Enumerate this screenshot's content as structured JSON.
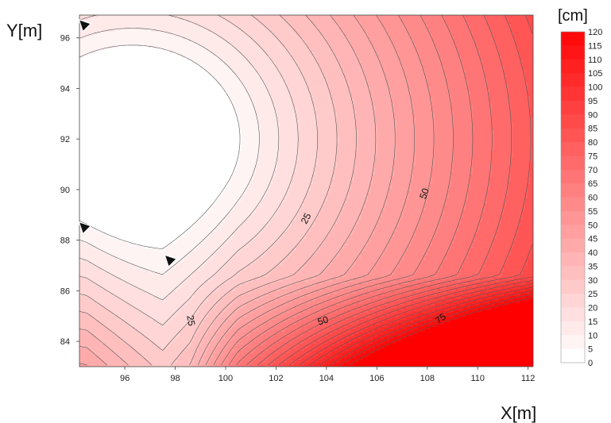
{
  "chart_data": {
    "type": "contour",
    "title": "",
    "xlabel": "X[m]",
    "ylabel": "Y[m]",
    "colorbar_unit": "[cm]",
    "xlim": [
      94.2,
      112.2
    ],
    "ylim": [
      83.0,
      96.9
    ],
    "x_ticks": [
      "96",
      "98",
      "100",
      "102",
      "104",
      "106",
      "108",
      "110",
      "112"
    ],
    "y_ticks": [
      "84",
      "86",
      "88",
      "90",
      "92",
      "94",
      "96"
    ],
    "levels": [
      0,
      5,
      10,
      15,
      20,
      25,
      30,
      35,
      40,
      45,
      50,
      55,
      60,
      65,
      70,
      75,
      80,
      85,
      90,
      95,
      100,
      105,
      110,
      115,
      120
    ],
    "colorbar_labels": [
      "120",
      "115",
      "110",
      "105",
      "100",
      "95",
      "90",
      "85",
      "80",
      "75",
      "70",
      "65",
      "60",
      "55",
      "50",
      "45",
      "40",
      "35",
      "30",
      "25",
      "20",
      "15",
      "10",
      "5",
      "0"
    ],
    "colors": {
      "low": "#ffffff",
      "high": "#ff0000",
      "contour_line": "#555555"
    },
    "contour_labels": [
      {
        "text": "25",
        "x": 103.3,
        "y": 88.8,
        "angle": -62
      },
      {
        "text": "50",
        "x": 108.0,
        "y": 89.8,
        "angle": -70
      },
      {
        "text": "25",
        "x": 98.5,
        "y": 84.8,
        "angle": 80
      },
      {
        "text": "50",
        "x": 103.9,
        "y": 84.7,
        "angle": -18
      },
      {
        "text": "75",
        "x": 108.6,
        "y": 84.8,
        "angle": -35
      }
    ],
    "markers": [
      {
        "name": "triangle-marker",
        "x": 94.4,
        "y": 96.5
      },
      {
        "name": "triangle-marker",
        "x": 94.4,
        "y": 88.5
      },
      {
        "name": "triangle-marker",
        "x": 97.8,
        "y": 87.2
      }
    ]
  }
}
